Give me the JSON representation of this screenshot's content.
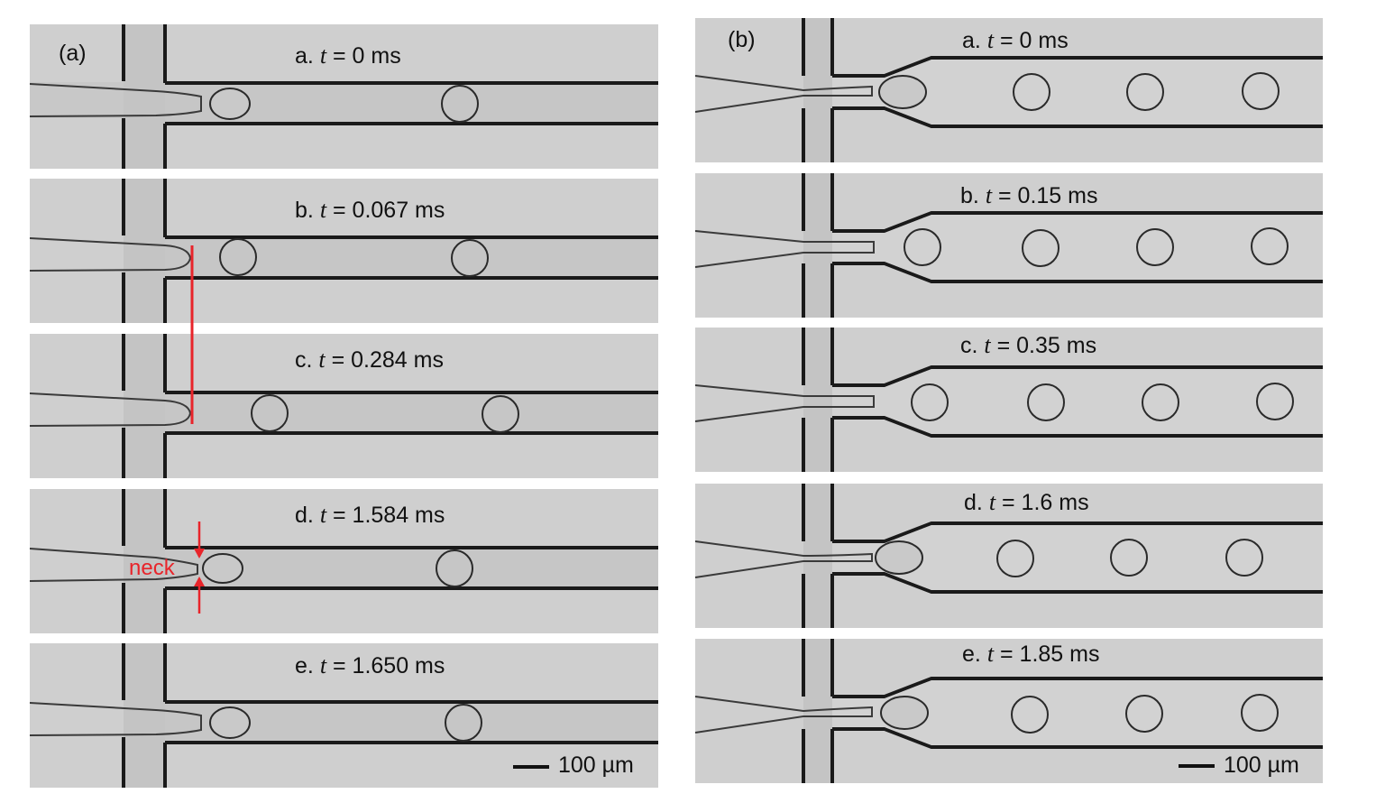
{
  "panel_a": {
    "label": "(a)",
    "frames": [
      {
        "prefix": "a.",
        "var": "t",
        "value": "= 0 ms"
      },
      {
        "prefix": "b.",
        "var": "t",
        "value": "= 0.067 ms"
      },
      {
        "prefix": "c.",
        "var": "t",
        "value": "= 0.284 ms"
      },
      {
        "prefix": "d.",
        "var": "t",
        "value": "= 1.584 ms"
      },
      {
        "prefix": "e.",
        "var": "t",
        "value": "= 1.650 ms"
      }
    ],
    "annotation": "neck",
    "scale_label": "100 µm"
  },
  "panel_b": {
    "label": "(b)",
    "frames": [
      {
        "prefix": "a.",
        "var": "t",
        "value": "= 0 ms"
      },
      {
        "prefix": "b.",
        "var": "t",
        "value": "= 0.15 ms"
      },
      {
        "prefix": "c.",
        "var": "t",
        "value": "= 0.35 ms"
      },
      {
        "prefix": "d.",
        "var": "t",
        "value": "= 1.6 ms"
      },
      {
        "prefix": "e.",
        "var": "t",
        "value": "= 1.85 ms"
      }
    ],
    "scale_label": "100 µm"
  },
  "colors": {
    "annotation": "#e8242a",
    "background": "#cfcfcf",
    "wall": "#1a1a1a"
  }
}
